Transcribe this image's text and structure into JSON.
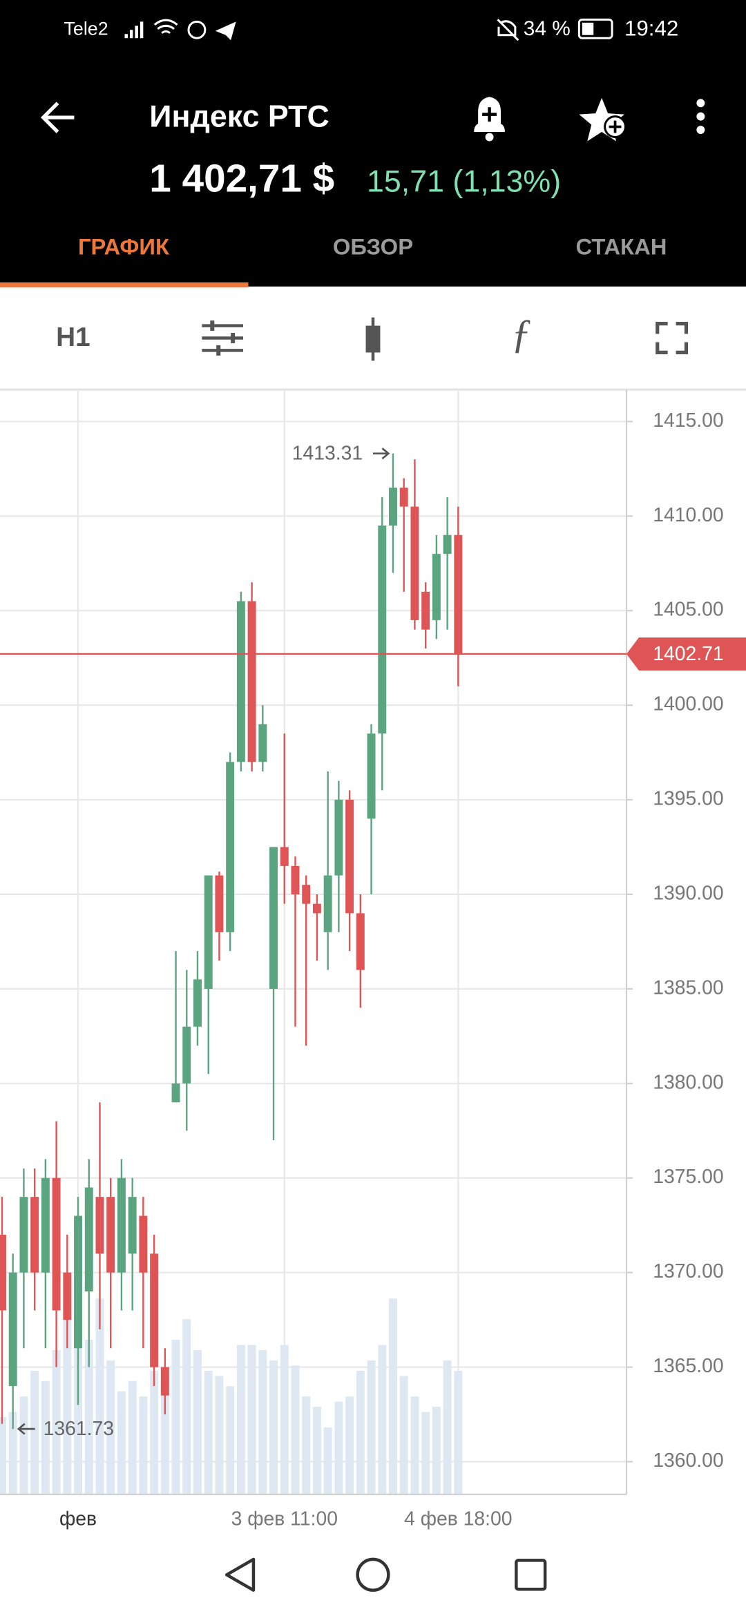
{
  "status_bar": {
    "carrier": "Tele2",
    "battery": "34 %",
    "time": "19:42"
  },
  "header": {
    "title": "Индекс РТС",
    "price": "1 402,71 $",
    "change": "15,71 (1,13%)"
  },
  "tabs": [
    "ГРАФИК",
    "ОБЗОР",
    "СТАКАН"
  ],
  "toolbar": {
    "interval": "H1"
  },
  "chart_data": {
    "type": "candlestick",
    "categories": [
      null,
      null,
      null,
      null,
      null,
      null,
      null,
      "фев",
      null,
      null,
      null,
      null,
      null,
      null,
      null,
      null,
      null,
      null,
      null,
      null,
      null,
      null,
      null,
      null,
      null,
      null,
      "3 фев 11:00",
      null,
      null,
      null,
      null,
      null,
      null,
      null,
      null,
      null,
      null,
      null,
      null,
      null,
      null,
      null,
      "4 фев 18:00"
    ],
    "open": [
      1372,
      1364,
      1370,
      1374,
      1370,
      1375,
      1370,
      1366,
      1369,
      1374,
      1374,
      1370,
      1371,
      1373,
      1371,
      1365,
      1379,
      1380,
      1383,
      1385,
      1391,
      1388,
      1397,
      1405.5,
      1397,
      1385,
      1392.5,
      1391.5,
      1390.5,
      1389.5,
      1388,
      1391,
      1395,
      1389,
      1394,
      1398.5,
      1409.5,
      1411.5,
      1410.5,
      1406,
      1404.5,
      1408,
      1409
    ],
    "high": [
      1374,
      1371,
      1375.5,
      1375.5,
      1376,
      1378,
      1372,
      1374,
      1376,
      1379,
      1375,
      1376,
      1375,
      1374,
      1372,
      1366,
      1387,
      1386,
      1387,
      1391,
      1391.2,
      1397.5,
      1406,
      1406.5,
      1400,
      1392.5,
      1398.5,
      1392,
      1391,
      1390,
      1396.5,
      1396,
      1395.5,
      1390,
      1399,
      1411,
      1413.31,
      1412,
      1413,
      1406.5,
      1409,
      1411,
      1410.5
    ],
    "low": [
      1362,
      1361.73,
      1366,
      1368,
      1366,
      1365,
      1366,
      1363,
      1365,
      1367,
      1366,
      1368,
      1368,
      1366,
      1364,
      1362.5,
      1379,
      1377.5,
      1382,
      1380.5,
      1386.5,
      1387,
      1396.5,
      1396.5,
      1396.5,
      1377,
      1389.5,
      1383,
      1382,
      1386.5,
      1386,
      1388,
      1387,
      1384,
      1390,
      1395.5,
      1407,
      1406,
      1404,
      1403,
      1403.5,
      1404,
      1401
    ],
    "close": [
      1368,
      1370,
      1374,
      1370,
      1375,
      1368,
      1367.5,
      1373,
      1374.5,
      1371,
      1370,
      1375,
      1374,
      1370,
      1365,
      1363.5,
      1380,
      1383,
      1385.5,
      1391,
      1388,
      1397,
      1405.5,
      1397,
      1399,
      1392.5,
      1391.5,
      1390,
      1389.5,
      1389,
      1391,
      1395,
      1389,
      1386,
      1398.5,
      1409.5,
      1411.5,
      1410.5,
      1404.5,
      1404,
      1408,
      1409,
      1402.71
    ],
    "volume": [
      75,
      80,
      95,
      120,
      110,
      140,
      180,
      175,
      150,
      190,
      130,
      100,
      110,
      95,
      120,
      110,
      150,
      170,
      140,
      120,
      115,
      105,
      145,
      145,
      140,
      130,
      145,
      125,
      95,
      85,
      65,
      90,
      95,
      120,
      130,
      145,
      190,
      115,
      95,
      80,
      85,
      130,
      120
    ],
    "ylim": [
      1358.27,
      1416.69
    ],
    "yticks": [
      {
        "value": 1360,
        "label": "1360.00"
      },
      {
        "value": 1365,
        "label": "1365.00"
      },
      {
        "value": 1370,
        "label": "1370.00"
      },
      {
        "value": 1375,
        "label": "1375.00"
      },
      {
        "value": 1380,
        "label": "1380.00"
      },
      {
        "value": 1385,
        "label": "1385.00"
      },
      {
        "value": 1390,
        "label": "1390.00"
      },
      {
        "value": 1395,
        "label": "1395.00"
      },
      {
        "value": 1400,
        "label": "1400.00"
      },
      {
        "value": 1405,
        "label": "1405.00"
      },
      {
        "value": 1410,
        "label": "1410.00"
      },
      {
        "value": 1415,
        "label": "1415.00"
      }
    ],
    "current_price": 1402.71,
    "high_label": 1413.31,
    "low_label": 1361.73,
    "up_color": "#5aa57f",
    "down_color": "#df5454",
    "volume_color": "#dde8f2",
    "grid": true
  }
}
